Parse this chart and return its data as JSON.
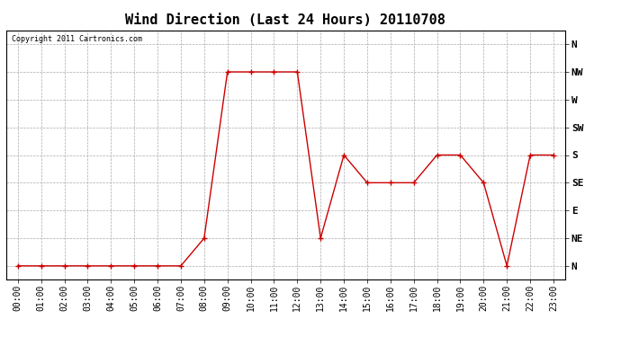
{
  "title": "Wind Direction (Last 24 Hours) 20110708",
  "copyright": "Copyright 2011 Cartronics.com",
  "x_labels": [
    "00:00",
    "01:00",
    "02:00",
    "03:00",
    "04:00",
    "05:00",
    "06:00",
    "07:00",
    "08:00",
    "09:00",
    "10:00",
    "11:00",
    "12:00",
    "13:00",
    "14:00",
    "15:00",
    "16:00",
    "17:00",
    "18:00",
    "19:00",
    "20:00",
    "21:00",
    "22:00",
    "23:00"
  ],
  "y_labels": [
    "N",
    "NE",
    "E",
    "SE",
    "S",
    "SW",
    "W",
    "NW",
    "N"
  ],
  "data_points": {
    "00:00": 0,
    "01:00": 0,
    "02:00": 0,
    "03:00": 0,
    "04:00": 0,
    "05:00": 0,
    "06:00": 0,
    "07:00": 0,
    "08:00": 1,
    "09:00": 7,
    "10:00": 7,
    "11:00": 7,
    "12:00": 7,
    "13:00": 1,
    "14:00": 4,
    "15:00": 3,
    "16:00": 3,
    "17:00": 3,
    "18:00": 4,
    "19:00": 4,
    "20:00": 3,
    "21:00": 0,
    "22:00": 4,
    "23:00": 4
  },
  "line_color": "#cc0000",
  "marker": "+",
  "marker_size": 5,
  "bg_color": "#ffffff",
  "plot_bg_color": "#ffffff",
  "grid_color": "#aaaaaa",
  "grid_style": "--",
  "title_fontsize": 11,
  "tick_fontsize": 7,
  "copyright_fontsize": 6,
  "ylabel_fontsize": 8
}
